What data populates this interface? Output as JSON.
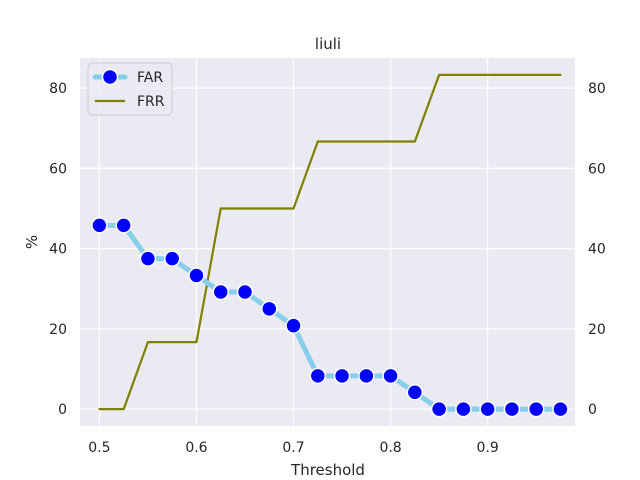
{
  "chart_data": {
    "type": "line",
    "title": "liuli",
    "xlabel": "Threshold",
    "ylabel": "%",
    "xlim": [
      0.48,
      0.99
    ],
    "ylim": [
      -4.2,
      87.5
    ],
    "xticks": [
      0.5,
      0.6,
      0.7,
      0.8,
      0.9
    ],
    "xtick_labels": [
      "0.5",
      "0.6",
      "0.7",
      "0.8",
      "0.9"
    ],
    "yticks": [
      0,
      20,
      40,
      60,
      80
    ],
    "ytick_labels": [
      "0",
      "20",
      "40",
      "60",
      "80"
    ],
    "right_axis_ticks": true,
    "grid": true,
    "legend_placement": "top-left",
    "x": [
      0.5,
      0.525,
      0.55,
      0.575,
      0.6,
      0.625,
      0.65,
      0.675,
      0.7,
      0.725,
      0.75,
      0.775,
      0.8,
      0.825,
      0.85,
      0.875,
      0.9,
      0.925,
      0.95,
      0.975
    ],
    "series": [
      {
        "name": "FAR",
        "values": [
          45.8,
          45.8,
          37.5,
          37.5,
          33.3,
          29.2,
          29.2,
          25.0,
          20.8,
          8.3,
          8.3,
          8.3,
          8.3,
          4.2,
          0,
          0,
          0,
          0,
          0,
          0
        ],
        "line_color": "#87ceeb",
        "marker_color": "#0000ff",
        "marker": "circle"
      },
      {
        "name": "FRR",
        "values": [
          0,
          0,
          16.7,
          16.7,
          16.7,
          50.0,
          50.0,
          50.0,
          50.0,
          66.7,
          66.7,
          66.7,
          66.7,
          66.7,
          83.3,
          83.3,
          83.3,
          83.3,
          83.3,
          83.3
        ],
        "line_color": "#808000",
        "marker": "none"
      }
    ],
    "background_color": "#eaeaf2",
    "grid_color": "#ffffff"
  }
}
